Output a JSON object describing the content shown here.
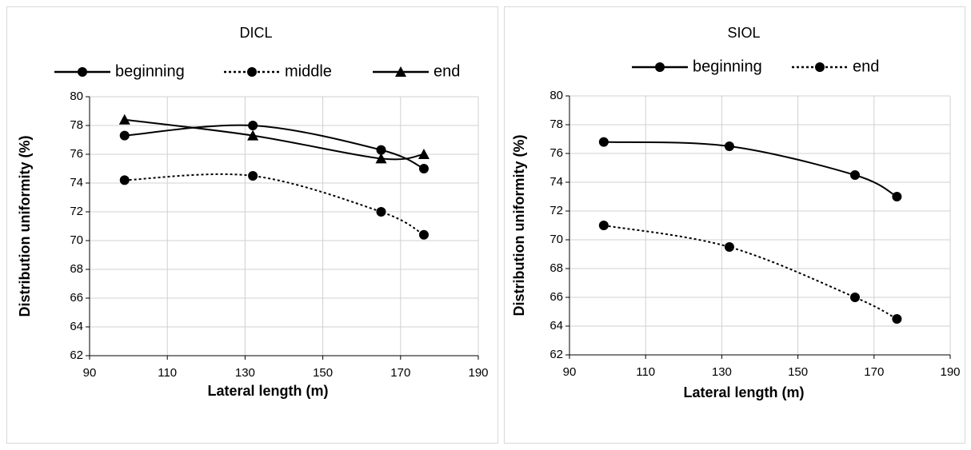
{
  "chart_data": [
    {
      "type": "line",
      "title": "DICL",
      "x_label": "Lateral length (m)",
      "y_label": "Distribution uniformity (%)",
      "x": [
        99,
        132,
        165,
        176
      ],
      "series": [
        {
          "name": "beginning",
          "color": "#000000",
          "line_style": "solid",
          "marker": "circle",
          "values": [
            77.3,
            78,
            76.3,
            75
          ]
        },
        {
          "name": "middle",
          "color": "#000000",
          "line_style": "dotted",
          "marker": "circle",
          "values": [
            74.2,
            74.5,
            72,
            70.4
          ]
        },
        {
          "name": "end",
          "color": "#000000",
          "line_style": "solid",
          "marker": "triangle",
          "values": [
            78.4,
            77.3,
            75.7,
            76
          ]
        }
      ],
      "xlim": [
        90,
        190
      ],
      "xticks": [
        90,
        110,
        130,
        150,
        170,
        190
      ],
      "ylim": [
        62,
        80
      ],
      "yticks": [
        62,
        64,
        66,
        68,
        70,
        72,
        74,
        76,
        78,
        80
      ],
      "grid": true,
      "legend": "top"
    },
    {
      "type": "line",
      "title": "SIOL",
      "x_label": "Lateral length (m)",
      "y_label": "Distribution uniformity (%)",
      "x": [
        99,
        132,
        165,
        176
      ],
      "series": [
        {
          "name": "beginning",
          "color": "#000000",
          "line_style": "solid",
          "marker": "circle",
          "values": [
            76.8,
            76.5,
            74.5,
            73
          ]
        },
        {
          "name": "end",
          "color": "#000000",
          "line_style": "dotted",
          "marker": "circle",
          "values": [
            71,
            69.5,
            66,
            64.5
          ]
        }
      ],
      "xlim": [
        90,
        190
      ],
      "xticks": [
        90,
        110,
        130,
        150,
        170,
        190
      ],
      "ylim": [
        62,
        80
      ],
      "yticks": [
        62,
        64,
        66,
        68,
        70,
        72,
        74,
        76,
        78,
        80
      ],
      "grid": true,
      "legend": "top"
    }
  ]
}
